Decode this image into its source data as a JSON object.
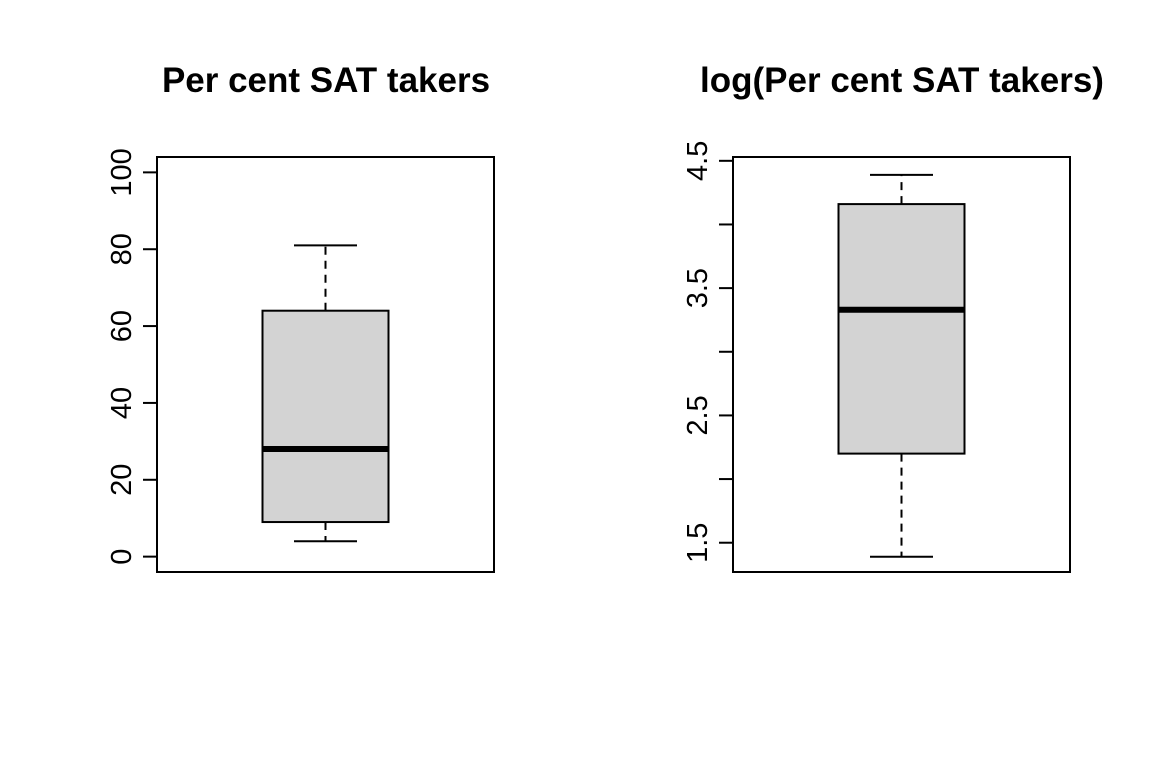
{
  "chart_data": [
    {
      "type": "box",
      "title": "Per cent SAT takers",
      "ylim": [
        -4,
        104
      ],
      "yticks": [
        0,
        20,
        40,
        60,
        80,
        100
      ],
      "ytick_labels": [
        "0",
        "20",
        "40",
        "60",
        "80",
        "100"
      ],
      "box": {
        "whisker_low": 4,
        "q1": 9,
        "median": 28,
        "q3": 64,
        "whisker_high": 81
      },
      "box_color": "#d3d3d3"
    },
    {
      "type": "box",
      "title": "log(Per cent SAT takers)",
      "ylim": [
        1.27,
        4.53
      ],
      "yticks": [
        1.5,
        2.0,
        2.5,
        3.0,
        3.5,
        4.0,
        4.5
      ],
      "ytick_labels": [
        "1.5",
        "",
        "2.5",
        "",
        "3.5",
        "",
        "4.5"
      ],
      "box": {
        "whisker_low": 1.39,
        "q1": 2.2,
        "median": 3.33,
        "q3": 4.16,
        "whisker_high": 4.39
      },
      "box_color": "#d3d3d3"
    }
  ]
}
